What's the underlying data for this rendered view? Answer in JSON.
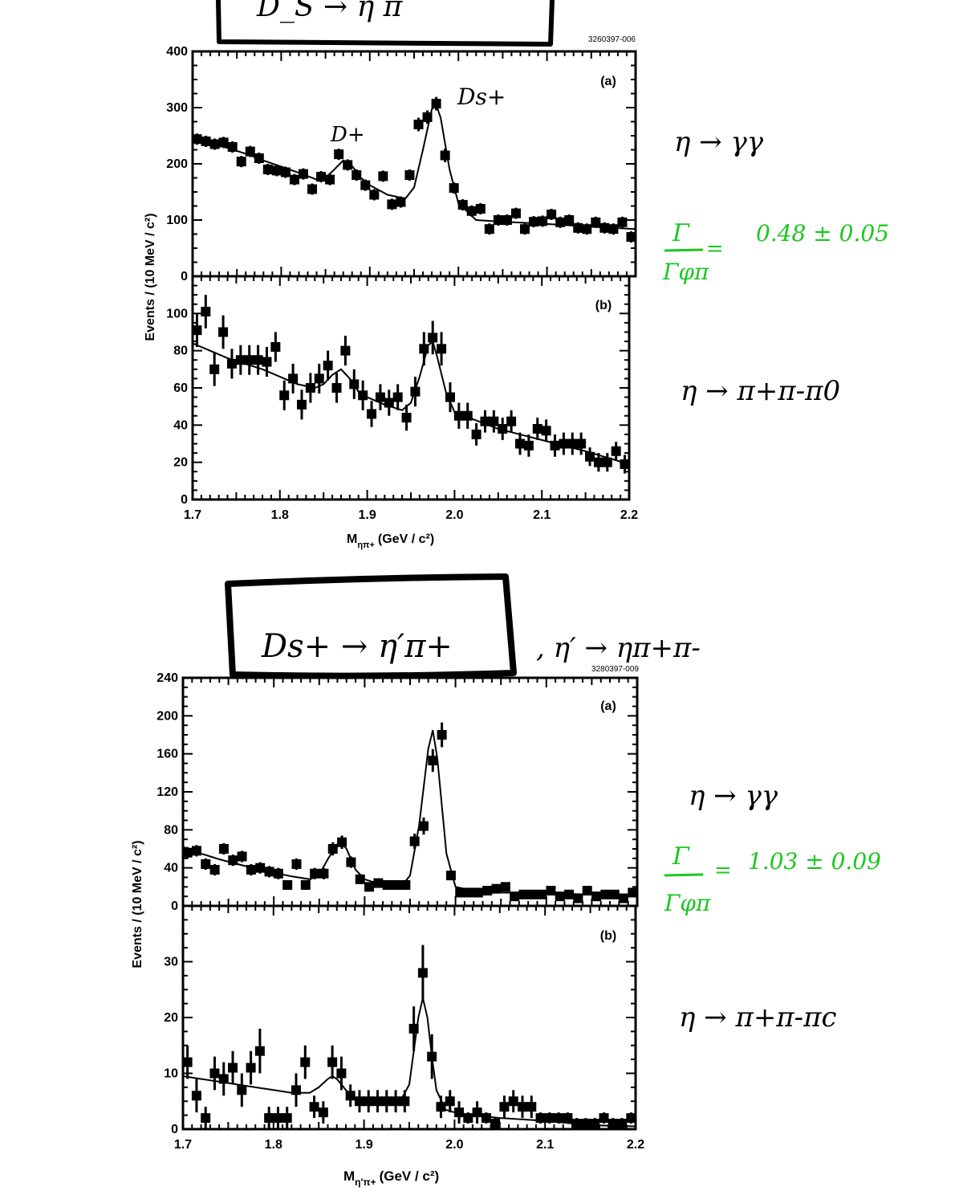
{
  "figure1": {
    "box_title": "D_S → η π",
    "figure_id": "3260397-006",
    "ylabel": "Events / (10 MeV / c²)",
    "xlabel_main": "M",
    "xlabel_sub": "ηπ+",
    "xlabel_units": "(GeV / c²)",
    "panel_a_label": "(a)",
    "panel_b_label": "(b)",
    "peak_label_d": "D+",
    "peak_label_ds": "Ds+",
    "note_a_decay": "η → γγ",
    "note_ratio_num": "Γ",
    "note_ratio_den": "Γφπ",
    "note_ratio_eq": "=",
    "note_ratio_value": "0.48 ± 0.05",
    "note_b_decay": "η → π+π-π0"
  },
  "figure2": {
    "box_title": "Ds+ → η′π+",
    "side_note": ", η′ → ηπ+π-",
    "figure_id": "3280397-009",
    "ylabel": "Events / (10 MeV / c²)",
    "xlabel_main": "M",
    "xlabel_sub": "η′π+",
    "xlabel_units": "(GeV / c²)",
    "panel_a_label": "(a)",
    "panel_b_label": "(b)",
    "note_a_decay": "η → γγ",
    "note_ratio_num": "Γ",
    "note_ratio_den": "Γφπ",
    "note_ratio_eq": "=",
    "note_ratio_value": "1.03 ± 0.09",
    "note_b_decay": "η → π+π-πc"
  },
  "chart_data": [
    {
      "id": "fig1a",
      "type": "scatter",
      "title": "(a)",
      "ylabel": "Events / (10 MeV / c²)",
      "xlim": [
        1.7,
        2.2
      ],
      "ylim": [
        0,
        400
      ],
      "yticks": [
        0,
        100,
        200,
        300,
        400
      ],
      "xticks": [],
      "x": [
        1.705,
        1.715,
        1.725,
        1.735,
        1.745,
        1.755,
        1.765,
        1.775,
        1.785,
        1.795,
        1.805,
        1.815,
        1.825,
        1.835,
        1.845,
        1.855,
        1.865,
        1.875,
        1.885,
        1.895,
        1.905,
        1.915,
        1.925,
        1.935,
        1.945,
        1.955,
        1.965,
        1.975,
        1.985,
        1.995,
        2.005,
        2.015,
        2.025,
        2.035,
        2.045,
        2.055,
        2.065,
        2.075,
        2.085,
        2.095,
        2.105,
        2.115,
        2.125,
        2.135,
        2.145,
        2.155,
        2.165,
        2.175,
        2.185,
        2.195
      ],
      "y": [
        244,
        240,
        235,
        238,
        230,
        204,
        222,
        210,
        190,
        188,
        185,
        172,
        182,
        155,
        177,
        172,
        217,
        198,
        180,
        162,
        145,
        178,
        128,
        132,
        180,
        270,
        283,
        307,
        215,
        157,
        127,
        116,
        120,
        84,
        100,
        100,
        112,
        84,
        97,
        98,
        110,
        96,
        100,
        86,
        84,
        96,
        86,
        84,
        96,
        70
      ],
      "yerr": [
        10,
        10,
        10,
        10,
        10,
        10,
        10,
        10,
        10,
        10,
        10,
        10,
        10,
        10,
        10,
        10,
        10,
        10,
        10,
        10,
        10,
        10,
        10,
        10,
        10,
        12,
        12,
        12,
        12,
        10,
        10,
        10,
        10,
        10,
        10,
        10,
        10,
        10,
        10,
        10,
        10,
        10,
        10,
        10,
        10,
        10,
        10,
        10,
        10,
        10
      ],
      "fit": {
        "x": [
          1.7,
          1.72,
          1.74,
          1.76,
          1.78,
          1.8,
          1.82,
          1.84,
          1.85,
          1.86,
          1.87,
          1.88,
          1.89,
          1.9,
          1.92,
          1.94,
          1.95,
          1.96,
          1.97,
          1.975,
          1.98,
          1.99,
          2.0,
          2.02,
          2.05,
          2.1,
          2.15,
          2.2
        ],
        "y": [
          245,
          237,
          228,
          218,
          206,
          195,
          184,
          172,
          175,
          190,
          206,
          196,
          175,
          162,
          145,
          138,
          158,
          225,
          297,
          305,
          282,
          190,
          130,
          100,
          97,
          93,
          88,
          84
        ]
      }
    },
    {
      "id": "fig1b",
      "type": "scatter",
      "title": "(b)",
      "xlabel": "Mηπ+ (GeV / c²)",
      "xlim": [
        1.7,
        2.2
      ],
      "ylim": [
        0,
        120
      ],
      "yticks": [
        0,
        20,
        40,
        60,
        80,
        100
      ],
      "xticks": [
        1.7,
        1.8,
        1.9,
        2.0,
        2.1,
        2.2
      ],
      "x": [
        1.705,
        1.715,
        1.725,
        1.735,
        1.745,
        1.755,
        1.765,
        1.775,
        1.785,
        1.795,
        1.805,
        1.815,
        1.825,
        1.835,
        1.845,
        1.855,
        1.865,
        1.875,
        1.885,
        1.895,
        1.905,
        1.915,
        1.925,
        1.935,
        1.945,
        1.955,
        1.965,
        1.975,
        1.985,
        1.995,
        2.005,
        2.015,
        2.025,
        2.035,
        2.045,
        2.055,
        2.065,
        2.075,
        2.085,
        2.095,
        2.105,
        2.115,
        2.125,
        2.135,
        2.145,
        2.155,
        2.165,
        2.175,
        2.185,
        2.195
      ],
      "y": [
        91,
        101,
        70,
        90,
        73,
        75,
        75,
        75,
        74,
        82,
        56,
        65,
        51,
        60,
        65,
        72,
        60,
        80,
        62,
        56,
        46,
        55,
        52,
        55,
        44,
        58,
        81,
        87,
        81,
        55,
        45,
        45,
        35,
        42,
        42,
        38,
        42,
        30,
        29,
        38,
        37,
        29,
        30,
        30,
        30,
        23,
        20,
        20,
        26,
        19
      ],
      "yerr": [
        9,
        9,
        9,
        9,
        8,
        8,
        8,
        8,
        8,
        8,
        8,
        8,
        8,
        8,
        8,
        8,
        8,
        8,
        8,
        8,
        7,
        7,
        7,
        7,
        7,
        8,
        9,
        9,
        9,
        8,
        7,
        7,
        6,
        6,
        6,
        6,
        6,
        6,
        6,
        6,
        6,
        6,
        6,
        6,
        6,
        5,
        5,
        5,
        5,
        5
      ],
      "fit": {
        "x": [
          1.7,
          1.72,
          1.74,
          1.76,
          1.78,
          1.8,
          1.82,
          1.84,
          1.85,
          1.86,
          1.87,
          1.88,
          1.89,
          1.9,
          1.92,
          1.94,
          1.95,
          1.96,
          1.97,
          1.975,
          1.98,
          1.99,
          2.0,
          2.05,
          2.1,
          2.15,
          2.2
        ],
        "y": [
          84,
          80,
          76,
          73,
          70,
          66,
          62,
          60,
          62,
          67,
          70,
          65,
          58,
          55,
          51,
          48,
          52,
          66,
          83,
          85,
          77,
          58,
          47,
          38,
          32,
          26,
          19
        ]
      }
    },
    {
      "id": "fig2a",
      "type": "scatter",
      "title": "(a)",
      "ylabel": "Events / (10 MeV / c²)",
      "xlim": [
        1.7,
        2.2
      ],
      "ylim": [
        0,
        240
      ],
      "yticks": [
        0,
        40,
        80,
        120,
        160,
        200,
        240
      ],
      "xticks": [],
      "x": [
        1.705,
        1.715,
        1.725,
        1.735,
        1.745,
        1.755,
        1.765,
        1.775,
        1.785,
        1.795,
        1.805,
        1.815,
        1.825,
        1.835,
        1.845,
        1.855,
        1.865,
        1.875,
        1.885,
        1.895,
        1.905,
        1.915,
        1.925,
        1.935,
        1.945,
        1.955,
        1.965,
        1.975,
        1.985,
        1.995,
        2.005,
        2.015,
        2.025,
        2.035,
        2.045,
        2.055,
        2.065,
        2.075,
        2.085,
        2.095,
        2.105,
        2.115,
        2.125,
        2.135,
        2.145,
        2.155,
        2.165,
        2.175,
        2.185,
        2.195
      ],
      "y": [
        56,
        58,
        44,
        38,
        60,
        48,
        52,
        38,
        40,
        36,
        34,
        22,
        44,
        22,
        34,
        34,
        60,
        67,
        46,
        28,
        20,
        24,
        22,
        22,
        22,
        68,
        84,
        153,
        180,
        32,
        14,
        14,
        14,
        16,
        18,
        20,
        10,
        12,
        12,
        12,
        16,
        10,
        12,
        8,
        16,
        10,
        12,
        12,
        8,
        14
      ],
      "yerr": [
        6,
        6,
        6,
        6,
        6,
        6,
        6,
        6,
        6,
        6,
        6,
        5,
        6,
        5,
        6,
        6,
        7,
        7,
        6,
        5,
        4,
        5,
        4,
        4,
        4,
        8,
        9,
        12,
        13,
        5,
        4,
        4,
        4,
        4,
        4,
        4,
        3,
        3,
        3,
        3,
        4,
        3,
        3,
        3,
        4,
        3,
        3,
        3,
        3,
        3
      ],
      "fit": {
        "x": [
          1.7,
          1.72,
          1.74,
          1.76,
          1.78,
          1.8,
          1.82,
          1.84,
          1.85,
          1.86,
          1.87,
          1.875,
          1.88,
          1.89,
          1.9,
          1.92,
          1.94,
          1.95,
          1.96,
          1.97,
          1.975,
          1.98,
          1.99,
          2.0,
          2.02,
          2.05,
          2.1,
          2.15,
          2.2
        ],
        "y": [
          62,
          55,
          49,
          44,
          39,
          35,
          31,
          28,
          33,
          50,
          65,
          66,
          60,
          38,
          28,
          22,
          20,
          32,
          85,
          165,
          185,
          155,
          55,
          20,
          16,
          14,
          13,
          12,
          12
        ]
      }
    },
    {
      "id": "fig2b",
      "type": "scatter",
      "title": "(b)",
      "xlabel": "Mη′π+ (GeV / c²)",
      "xlim": [
        1.7,
        2.2
      ],
      "ylim": [
        0,
        40
      ],
      "yticks": [
        0,
        10,
        20,
        30
      ],
      "xticks": [
        1.7,
        1.8,
        1.9,
        2.0,
        2.1,
        2.2
      ],
      "x": [
        1.705,
        1.715,
        1.725,
        1.735,
        1.745,
        1.755,
        1.765,
        1.775,
        1.785,
        1.795,
        1.805,
        1.815,
        1.825,
        1.835,
        1.845,
        1.855,
        1.865,
        1.875,
        1.885,
        1.895,
        1.905,
        1.915,
        1.925,
        1.935,
        1.945,
        1.955,
        1.965,
        1.975,
        1.985,
        1.995,
        2.005,
        2.015,
        2.025,
        2.035,
        2.045,
        2.055,
        2.065,
        2.075,
        2.085,
        2.095,
        2.105,
        2.115,
        2.125,
        2.135,
        2.145,
        2.155,
        2.165,
        2.175,
        2.185,
        2.195
      ],
      "y": [
        12,
        6,
        2,
        10,
        9,
        11,
        7,
        11,
        14,
        2,
        2,
        2,
        7,
        12,
        4,
        3,
        12,
        10,
        6,
        5,
        5,
        5,
        5,
        5,
        5,
        18,
        28,
        13,
        4,
        5,
        3,
        2,
        3,
        2,
        1,
        4,
        5,
        4,
        4,
        2,
        2,
        2,
        2,
        1,
        1,
        1,
        2,
        1,
        1,
        2
      ],
      "yerr": [
        3,
        3,
        2,
        3,
        3,
        3,
        3,
        3,
        4,
        2,
        2,
        2,
        3,
        3,
        2,
        2,
        3,
        3,
        2,
        2,
        2,
        2,
        2,
        2,
        2,
        4,
        5,
        4,
        2,
        2,
        2,
        1,
        2,
        1,
        1,
        2,
        2,
        2,
        2,
        1,
        1,
        1,
        1,
        1,
        1,
        1,
        1,
        1,
        1,
        1
      ],
      "fit": {
        "x": [
          1.7,
          1.72,
          1.74,
          1.76,
          1.78,
          1.8,
          1.82,
          1.84,
          1.85,
          1.86,
          1.865,
          1.87,
          1.88,
          1.89,
          1.9,
          1.92,
          1.94,
          1.95,
          1.955,
          1.96,
          1.965,
          1.97,
          1.975,
          1.98,
          1.99,
          2.0,
          2.02,
          2.05,
          2.1,
          2.15,
          2.2
        ],
        "y": [
          9.5,
          9,
          8.5,
          8,
          7.5,
          7,
          6.5,
          6.5,
          7.5,
          9,
          9.5,
          9,
          7,
          5.5,
          5,
          5,
          5,
          8,
          14,
          20,
          23.5,
          20,
          13,
          7,
          3.5,
          3,
          2.5,
          2,
          1.5,
          0.7,
          0.5
        ]
      }
    }
  ]
}
